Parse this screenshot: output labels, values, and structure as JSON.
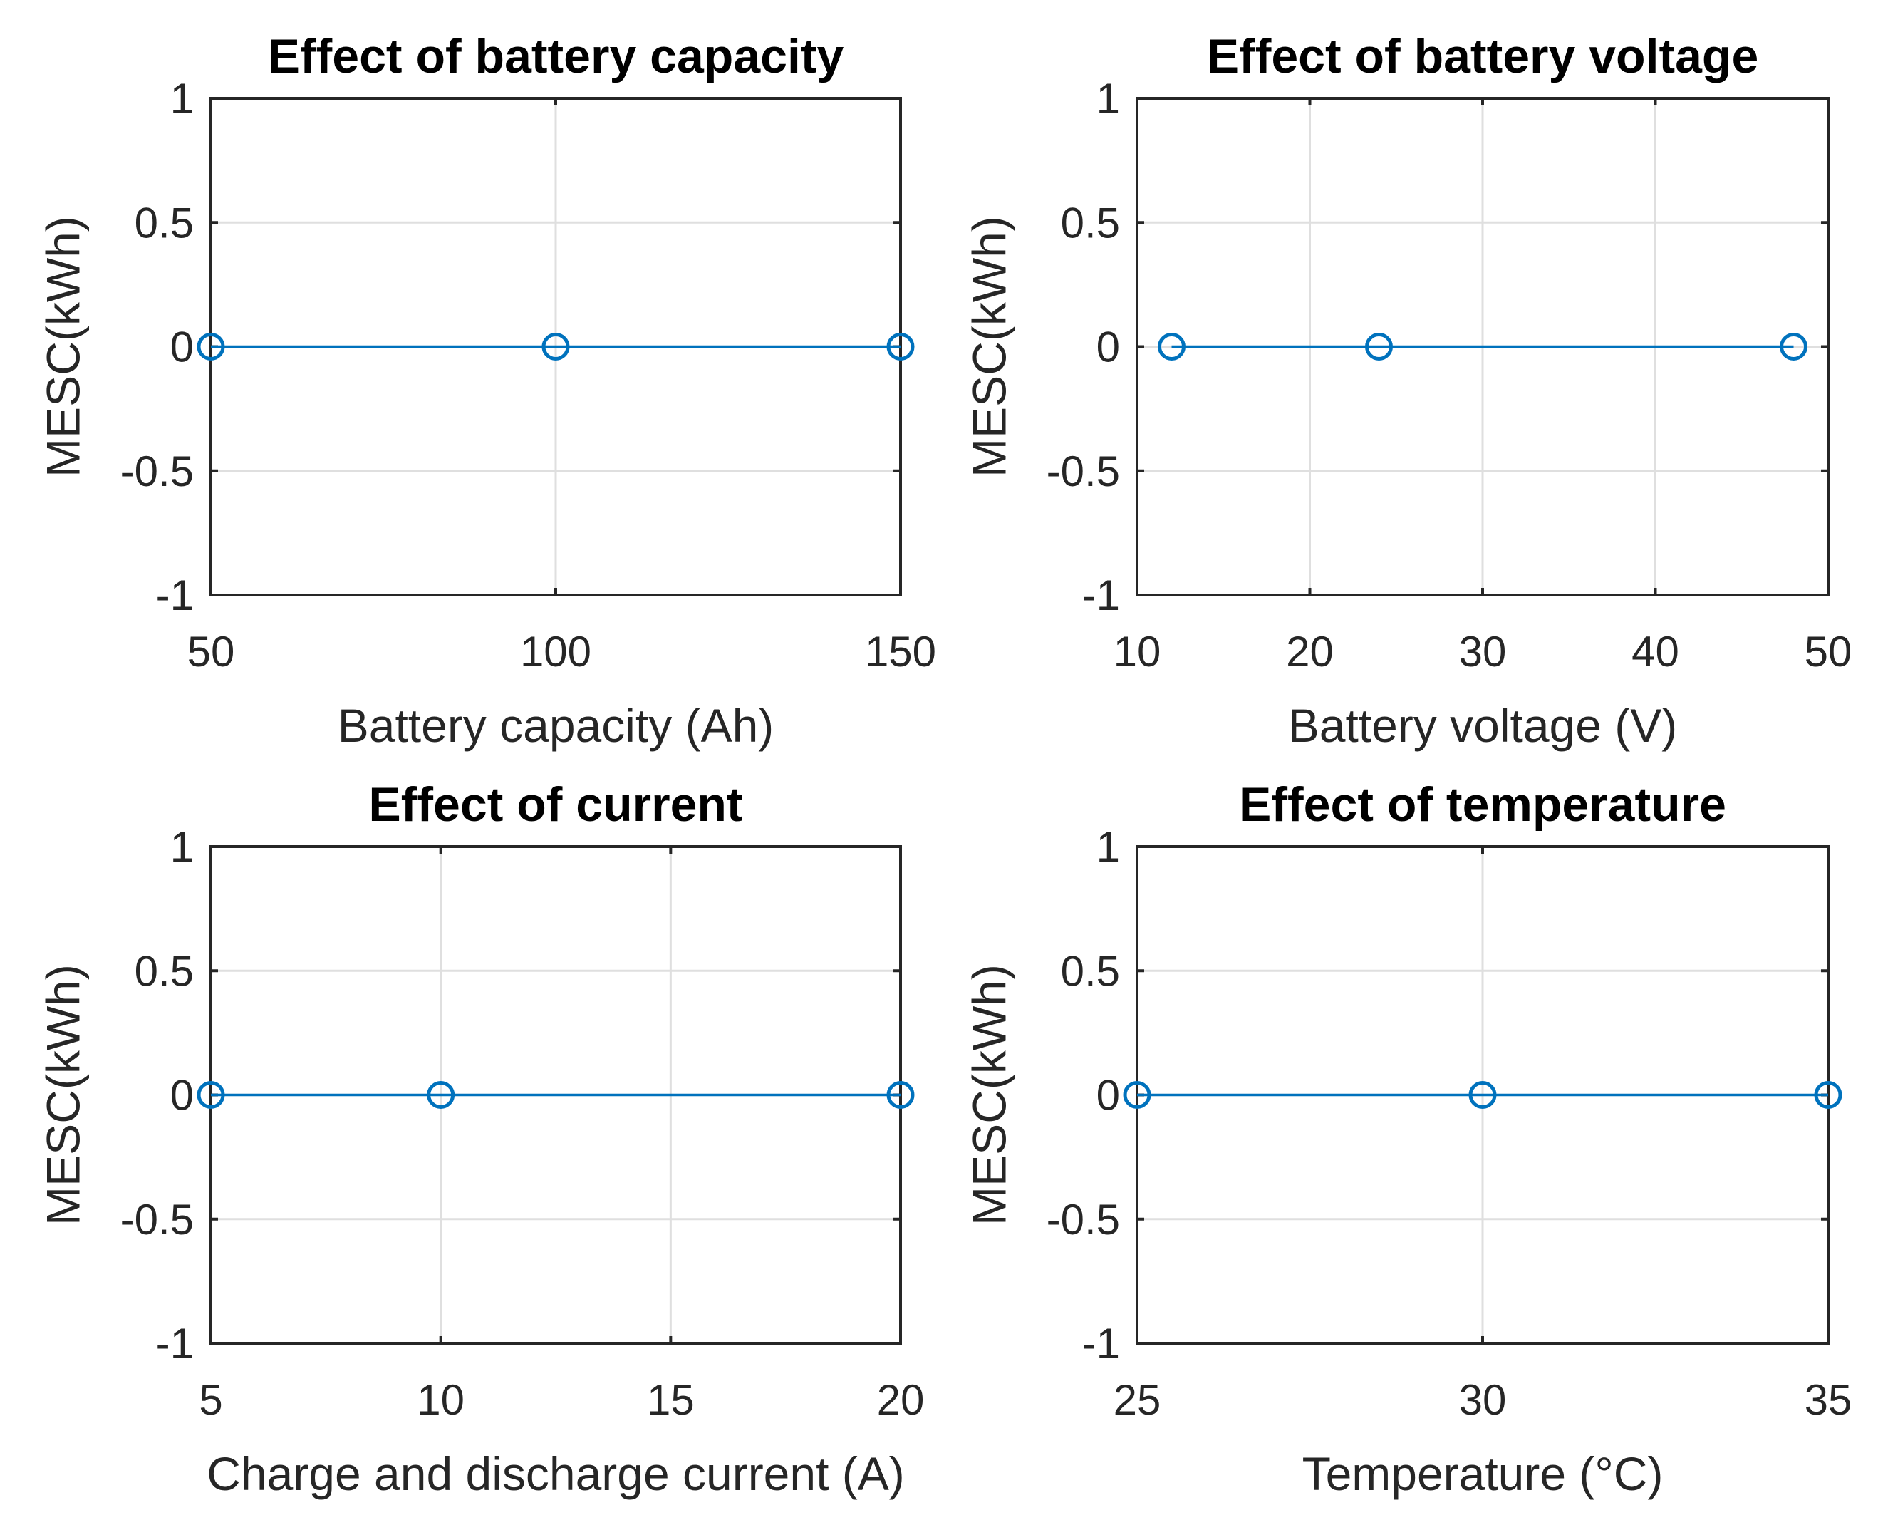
{
  "chart_data": [
    {
      "type": "line",
      "title": "Effect of battery capacity",
      "xlabel": "Battery capacity (Ah)",
      "ylabel": "MESC(kWh)",
      "xlim": [
        50,
        150
      ],
      "ylim": [
        -1,
        1
      ],
      "xticks": [
        50,
        100,
        150
      ],
      "xtick_labels": [
        "50",
        "100",
        "150"
      ],
      "yticks": [
        1,
        0.5,
        0,
        -0.5,
        -1
      ],
      "ytick_labels": [
        "1",
        "0.5",
        "0",
        "-0.5",
        "-1"
      ],
      "grid": true,
      "marker": "circle",
      "color": "#0072BD",
      "series": [
        {
          "name": "MESC",
          "x": [
            50,
            100,
            150
          ],
          "y": [
            0,
            0,
            0
          ]
        }
      ]
    },
    {
      "type": "line",
      "title": "Effect of battery voltage",
      "xlabel": "Battery voltage (V)",
      "ylabel": "MESC(kWh)",
      "xlim": [
        10,
        50
      ],
      "ylim": [
        -1,
        1
      ],
      "xticks": [
        10,
        20,
        30,
        40,
        50
      ],
      "xtick_labels": [
        "10",
        "20",
        "30",
        "40",
        "50"
      ],
      "yticks": [
        1,
        0.5,
        0,
        -0.5,
        -1
      ],
      "ytick_labels": [
        "1",
        "0.5",
        "0",
        "-0.5",
        "-1"
      ],
      "grid": true,
      "marker": "circle",
      "color": "#0072BD",
      "series": [
        {
          "name": "MESC",
          "x": [
            12,
            24,
            48
          ],
          "y": [
            0,
            0,
            0
          ]
        }
      ]
    },
    {
      "type": "line",
      "title": "Effect of current",
      "xlabel": "Charge and discharge current (A)",
      "ylabel": "MESC(kWh)",
      "xlim": [
        5,
        20
      ],
      "ylim": [
        -1,
        1
      ],
      "xticks": [
        5,
        10,
        15,
        20
      ],
      "xtick_labels": [
        "5",
        "10",
        "15",
        "20"
      ],
      "yticks": [
        1,
        0.5,
        0,
        -0.5,
        -1
      ],
      "ytick_labels": [
        "1",
        "0.5",
        "0",
        "-0.5",
        "-1"
      ],
      "grid": true,
      "marker": "circle",
      "color": "#0072BD",
      "series": [
        {
          "name": "MESC",
          "x": [
            5,
            10,
            20
          ],
          "y": [
            0,
            0,
            0
          ]
        }
      ]
    },
    {
      "type": "line",
      "title": "Effect of temperature",
      "xlabel": "Temperature (°C)",
      "ylabel": "MESC(kWh)",
      "xlim": [
        25,
        35
      ],
      "ylim": [
        -1,
        1
      ],
      "xticks": [
        25,
        30,
        35
      ],
      "xtick_labels": [
        "25",
        "30",
        "35"
      ],
      "yticks": [
        1,
        0.5,
        0,
        -0.5,
        -1
      ],
      "ytick_labels": [
        "1",
        "0.5",
        "0",
        "-0.5",
        "-1"
      ],
      "grid": true,
      "marker": "circle",
      "color": "#0072BD",
      "series": [
        {
          "name": "MESC",
          "x": [
            25,
            30,
            35
          ],
          "y": [
            0,
            0,
            0
          ]
        }
      ]
    }
  ]
}
